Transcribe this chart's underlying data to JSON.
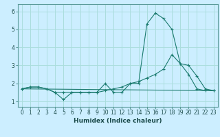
{
  "title": "",
  "xlabel": "Humidex (Indice chaleur)",
  "ylabel": "",
  "bg_color": "#cceeff",
  "line_color": "#1a7a6e",
  "grid_color": "#aadddd",
  "xlim": [
    -0.5,
    23.5
  ],
  "ylim": [
    0.7,
    6.4
  ],
  "xticks": [
    0,
    1,
    2,
    3,
    4,
    5,
    6,
    7,
    8,
    9,
    10,
    11,
    12,
    13,
    14,
    15,
    16,
    17,
    18,
    19,
    20,
    21,
    22,
    23
  ],
  "yticks": [
    1,
    2,
    3,
    4,
    5,
    6
  ],
  "line1_x": [
    0,
    1,
    2,
    3,
    4,
    5,
    6,
    7,
    8,
    9,
    10,
    11,
    12,
    13,
    14,
    15,
    16,
    17,
    18,
    19,
    20,
    21,
    22,
    23
  ],
  "line1_y": [
    1.7,
    1.8,
    1.8,
    1.7,
    1.5,
    1.1,
    1.5,
    1.5,
    1.5,
    1.5,
    2.0,
    1.5,
    1.5,
    2.0,
    2.0,
    5.3,
    5.9,
    5.6,
    5.0,
    3.1,
    2.5,
    1.7,
    1.6,
    1.6
  ],
  "line2_x": [
    0,
    1,
    2,
    3,
    4,
    5,
    6,
    7,
    8,
    9,
    10,
    11,
    12,
    13,
    14,
    15,
    16,
    17,
    18,
    19,
    20,
    21,
    22,
    23
  ],
  "line2_y": [
    1.7,
    1.8,
    1.8,
    1.7,
    1.5,
    1.5,
    1.5,
    1.5,
    1.5,
    1.5,
    1.6,
    1.7,
    1.8,
    2.0,
    2.1,
    2.3,
    2.5,
    2.8,
    3.6,
    3.1,
    3.0,
    2.4,
    1.7,
    1.6
  ],
  "line3_x": [
    0,
    23
  ],
  "line3_y": [
    1.7,
    1.6
  ]
}
